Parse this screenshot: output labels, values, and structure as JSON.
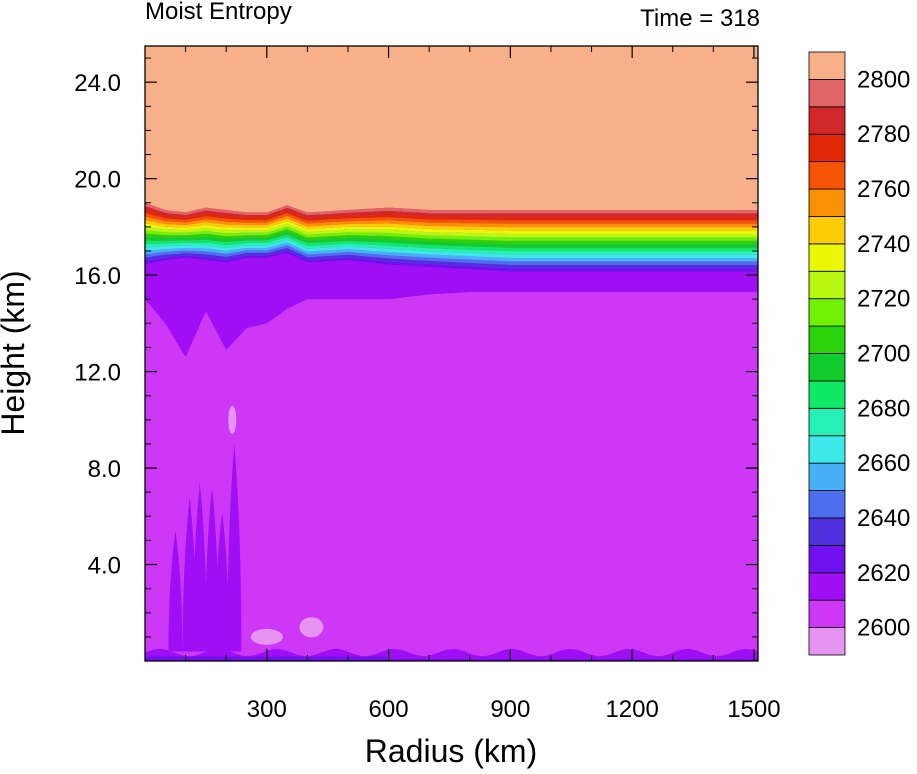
{
  "chart_data": {
    "type": "heatmap",
    "subtype": "filled-contour",
    "title_left": "Moist Entropy",
    "title_right": "Time = 318",
    "xlabel": "Radius (km)",
    "ylabel": "Height (km)",
    "xlim": [
      0,
      1510
    ],
    "ylim": [
      0,
      25.5
    ],
    "x_ticks": [
      300,
      600,
      900,
      1200,
      1500
    ],
    "x_tick_labels": [
      "300",
      "600",
      "900",
      "1200",
      "1500"
    ],
    "y_ticks": [
      4,
      8,
      12,
      16,
      20,
      24
    ],
    "y_tick_labels": [
      "4.0",
      "8.0",
      "12.0",
      "16.0",
      "20.0",
      "24.0"
    ],
    "colorbar": {
      "levels": [
        2600,
        2610,
        2620,
        2630,
        2640,
        2650,
        2660,
        2670,
        2680,
        2690,
        2700,
        2710,
        2720,
        2730,
        2740,
        2750,
        2760,
        2770,
        2780,
        2790,
        2800
      ],
      "labels": [
        "2600",
        "2620",
        "2640",
        "2660",
        "2680",
        "2700",
        "2720",
        "2740",
        "2760",
        "2780",
        "2800"
      ],
      "colors": [
        "#e694f2",
        "#cc38f6",
        "#9f0ef4",
        "#6f10ee",
        "#5030de",
        "#4e6ef0",
        "#48b0f6",
        "#3ce8e8",
        "#26f0b6",
        "#10e866",
        "#10cc2c",
        "#2ad20a",
        "#72f006",
        "#b8f812",
        "#eaf808",
        "#fccc04",
        "#fc9004",
        "#f45404",
        "#e02806",
        "#d02828",
        "#e06464",
        "#f8b088"
      ]
    },
    "profiles": {
      "radius": [
        0,
        50,
        100,
        150,
        200,
        250,
        300,
        350,
        400,
        500,
        600,
        700,
        800,
        900,
        1000,
        1200,
        1400,
        1510
      ],
      "inversion_top_height": [
        19.0,
        18.7,
        18.6,
        18.8,
        18.7,
        18.6,
        18.6,
        18.9,
        18.6,
        18.7,
        18.8,
        18.7,
        18.7,
        18.7,
        18.7,
        18.7,
        18.7,
        18.7
      ],
      "band_bottom_height": [
        16.3,
        16.5,
        16.6,
        16.5,
        16.4,
        16.6,
        16.6,
        16.8,
        16.4,
        16.5,
        16.3,
        16.2,
        16.1,
        16.0,
        16.0,
        16.0,
        16.0,
        16.0
      ],
      "upper_minimum_bottom_height": [
        15.0,
        14.0,
        12.6,
        14.5,
        12.9,
        13.8,
        14.0,
        14.6,
        15.0,
        15.0,
        15.0,
        15.2,
        15.3,
        15.3,
        15.3,
        15.3,
        15.3,
        15.3
      ]
    },
    "colorbar_orientation": "vertical",
    "colorbar_placement": "right",
    "grid": false
  }
}
